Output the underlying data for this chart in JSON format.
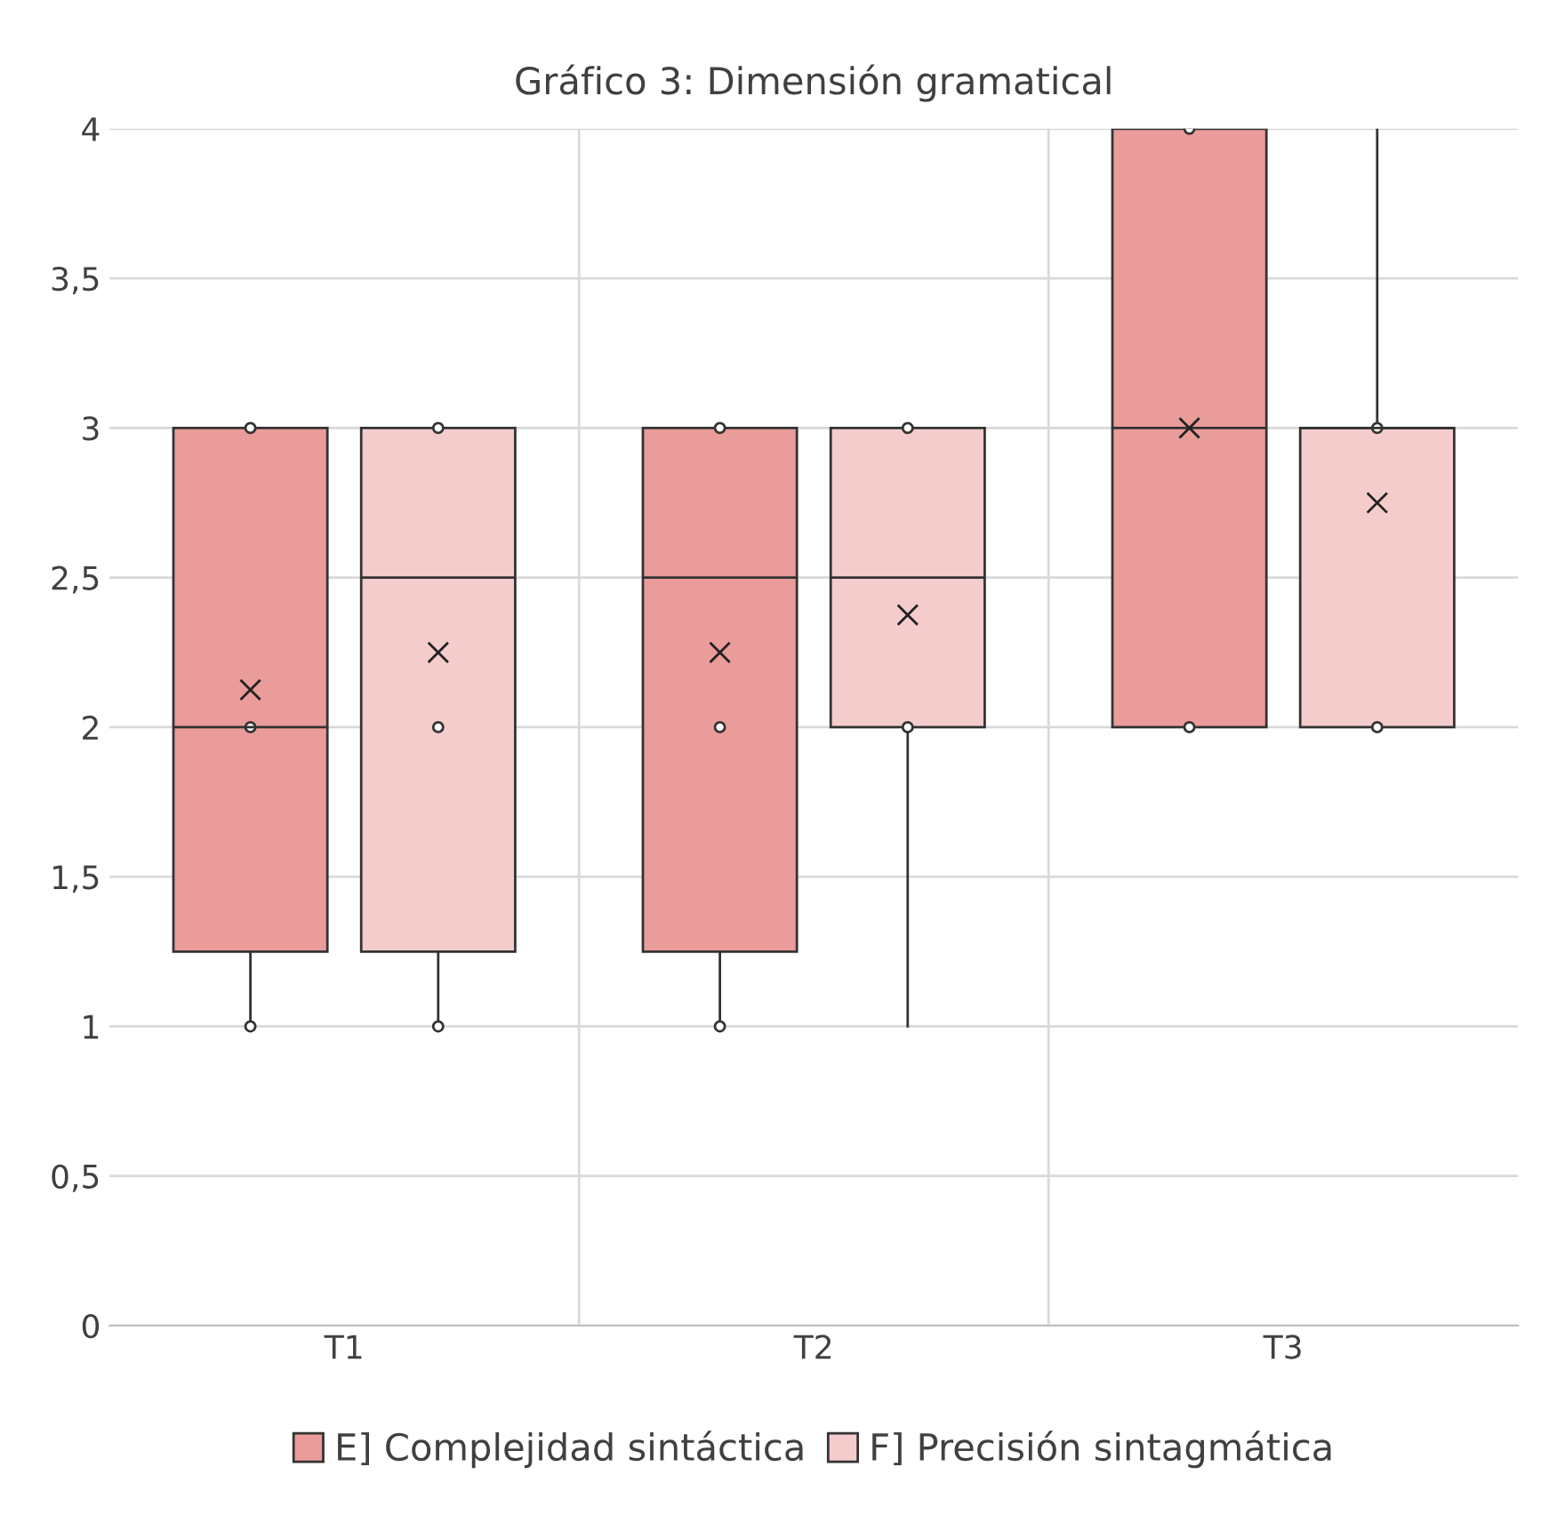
{
  "chart_data": {
    "type": "box",
    "title": "Gráfico 3: Dimensión gramatical",
    "categories": [
      "T1",
      "T2",
      "T3"
    ],
    "series": [
      {
        "name": "E] Complejidad sintáctica",
        "color": "#ea9c9a",
        "boxes": [
          {
            "low": 1,
            "q1": 1.25,
            "median": 2,
            "q3": 3,
            "high": 3,
            "mean": 2.125,
            "outliers": [
              1,
              2,
              3
            ]
          },
          {
            "low": 1,
            "q1": 1.25,
            "median": 2.5,
            "q3": 3,
            "high": 3,
            "mean": 2.25,
            "outliers": [
              1,
              2,
              3
            ]
          },
          {
            "low": 2,
            "q1": 2,
            "median": 3,
            "q3": 4,
            "high": 4,
            "mean": 3,
            "outliers": [
              2,
              4
            ]
          }
        ]
      },
      {
        "name": "F] Precisión sintagmática",
        "color": "#f5cccc",
        "boxes": [
          {
            "low": 1,
            "q1": 1.25,
            "median": 2.5,
            "q3": 3,
            "high": 3,
            "mean": 2.25,
            "outliers": [
              1,
              2,
              3
            ]
          },
          {
            "low": 1,
            "q1": 2,
            "median": 2.5,
            "q3": 3,
            "high": 3,
            "mean": 2.375,
            "outliers": [
              2,
              3
            ]
          },
          {
            "low": 2,
            "q1": 2,
            "median": 3,
            "q3": 3,
            "high": 4,
            "mean": 2.75,
            "outliers": [
              2,
              3
            ]
          }
        ]
      }
    ],
    "ylim": [
      0,
      4
    ],
    "yticks": [
      0,
      {
        "value": 0.5,
        "label": "0,5"
      },
      1,
      {
        "value": 1.5,
        "label": "1,5"
      },
      2,
      {
        "value": 2.5,
        "label": "2,5"
      },
      3,
      {
        "value": 3.5,
        "label": "3,5"
      },
      4
    ],
    "grid": true,
    "legend": "bottom"
  }
}
